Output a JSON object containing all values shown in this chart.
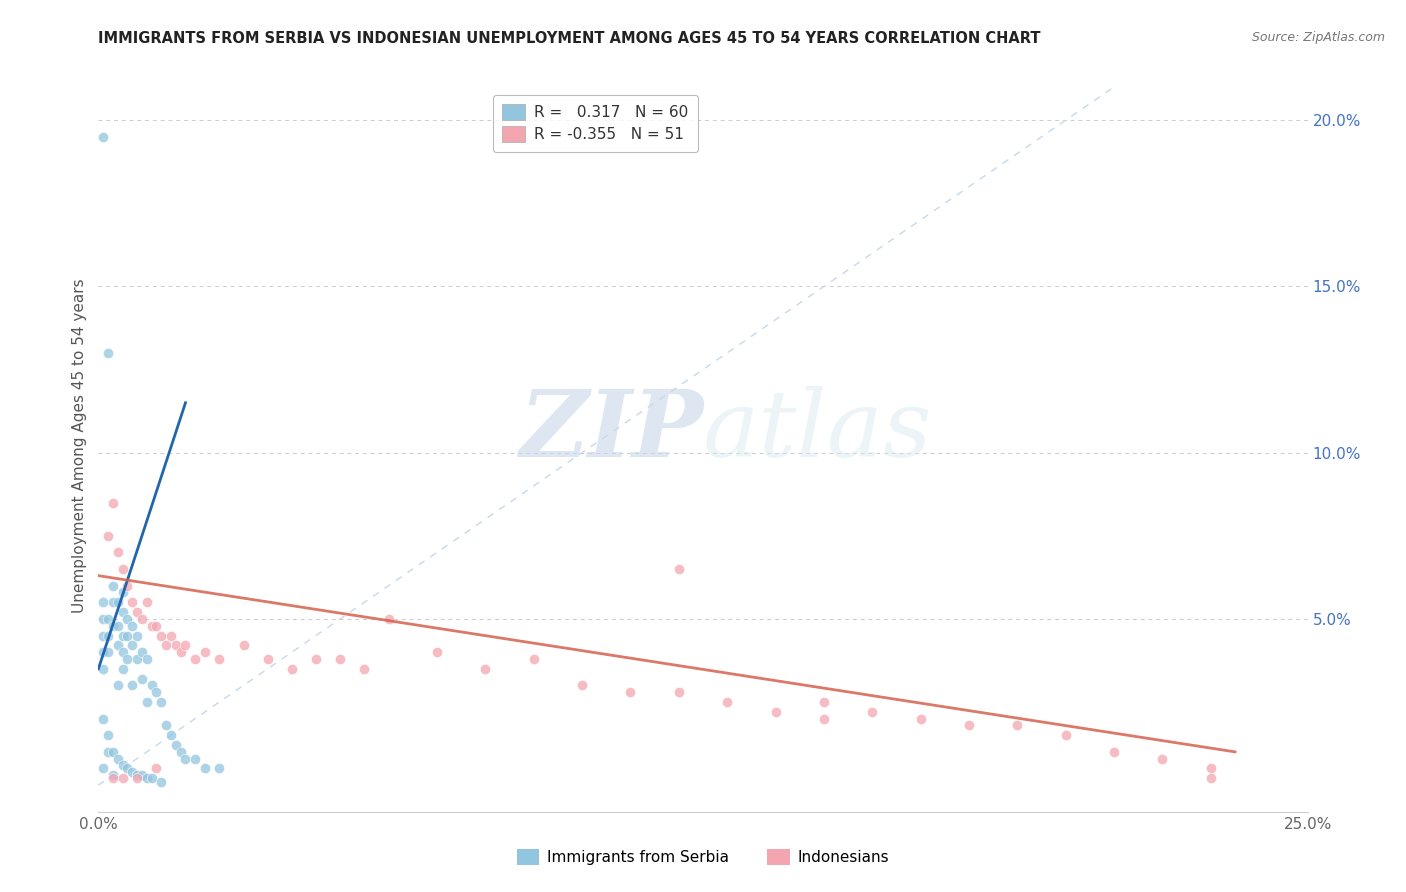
{
  "title": "IMMIGRANTS FROM SERBIA VS INDONESIAN UNEMPLOYMENT AMONG AGES 45 TO 54 YEARS CORRELATION CHART",
  "source": "Source: ZipAtlas.com",
  "ylabel": "Unemployment Among Ages 45 to 54 years",
  "ylabel_right_ticks": [
    "20.0%",
    "15.0%",
    "10.0%",
    "5.0%"
  ],
  "ylabel_right_vals": [
    0.2,
    0.15,
    0.1,
    0.05
  ],
  "xlim": [
    0.0,
    0.25
  ],
  "ylim": [
    -0.008,
    0.212
  ],
  "serbia_R": "0.317",
  "serbia_N": "60",
  "indonesia_R": "-0.355",
  "indonesia_N": "51",
  "serbia_color": "#92c5de",
  "indonesia_color": "#f4a6b0",
  "serbia_line_color": "#2166ac",
  "indonesia_line_color": "#d6604d",
  "diagonal_color": "#c8d8e8",
  "watermark_zip": "ZIP",
  "watermark_atlas": "atlas",
  "serbia_scatter_x": [
    0.001,
    0.001,
    0.001,
    0.001,
    0.001,
    0.001,
    0.001,
    0.002,
    0.002,
    0.002,
    0.002,
    0.002,
    0.003,
    0.003,
    0.003,
    0.003,
    0.004,
    0.004,
    0.004,
    0.004,
    0.005,
    0.005,
    0.005,
    0.005,
    0.005,
    0.006,
    0.006,
    0.006,
    0.007,
    0.007,
    0.007,
    0.008,
    0.008,
    0.009,
    0.009,
    0.01,
    0.01,
    0.011,
    0.012,
    0.013,
    0.014,
    0.015,
    0.016,
    0.017,
    0.018,
    0.02,
    0.022,
    0.025,
    0.001,
    0.002,
    0.003,
    0.004,
    0.005,
    0.006,
    0.007,
    0.008,
    0.009,
    0.01,
    0.011,
    0.013
  ],
  "serbia_scatter_y": [
    0.195,
    0.055,
    0.05,
    0.045,
    0.04,
    0.035,
    0.005,
    0.13,
    0.05,
    0.045,
    0.04,
    0.01,
    0.06,
    0.055,
    0.048,
    0.003,
    0.055,
    0.048,
    0.042,
    0.03,
    0.058,
    0.052,
    0.045,
    0.04,
    0.035,
    0.05,
    0.045,
    0.038,
    0.048,
    0.042,
    0.03,
    0.045,
    0.038,
    0.04,
    0.032,
    0.038,
    0.025,
    0.03,
    0.028,
    0.025,
    0.018,
    0.015,
    0.012,
    0.01,
    0.008,
    0.008,
    0.005,
    0.005,
    0.02,
    0.015,
    0.01,
    0.008,
    0.006,
    0.005,
    0.004,
    0.003,
    0.003,
    0.002,
    0.002,
    0.001
  ],
  "indonesia_scatter_x": [
    0.002,
    0.003,
    0.004,
    0.005,
    0.006,
    0.007,
    0.008,
    0.009,
    0.01,
    0.011,
    0.012,
    0.013,
    0.014,
    0.015,
    0.016,
    0.017,
    0.018,
    0.02,
    0.022,
    0.025,
    0.03,
    0.035,
    0.04,
    0.045,
    0.05,
    0.055,
    0.06,
    0.07,
    0.08,
    0.09,
    0.1,
    0.11,
    0.12,
    0.13,
    0.14,
    0.15,
    0.16,
    0.17,
    0.18,
    0.19,
    0.2,
    0.21,
    0.22,
    0.23,
    0.003,
    0.005,
    0.008,
    0.012,
    0.12,
    0.15,
    0.23
  ],
  "indonesia_scatter_y": [
    0.075,
    0.085,
    0.07,
    0.065,
    0.06,
    0.055,
    0.052,
    0.05,
    0.055,
    0.048,
    0.048,
    0.045,
    0.042,
    0.045,
    0.042,
    0.04,
    0.042,
    0.038,
    0.04,
    0.038,
    0.042,
    0.038,
    0.035,
    0.038,
    0.038,
    0.035,
    0.05,
    0.04,
    0.035,
    0.038,
    0.03,
    0.028,
    0.028,
    0.025,
    0.022,
    0.025,
    0.022,
    0.02,
    0.018,
    0.018,
    0.015,
    0.01,
    0.008,
    0.005,
    0.002,
    0.002,
    0.002,
    0.005,
    0.065,
    0.02,
    0.002
  ],
  "serbia_line_x": [
    0.0,
    0.018
  ],
  "serbia_line_y": [
    0.035,
    0.115
  ],
  "indonesia_line_x": [
    0.0,
    0.235
  ],
  "indonesia_line_y": [
    0.063,
    0.01
  ]
}
